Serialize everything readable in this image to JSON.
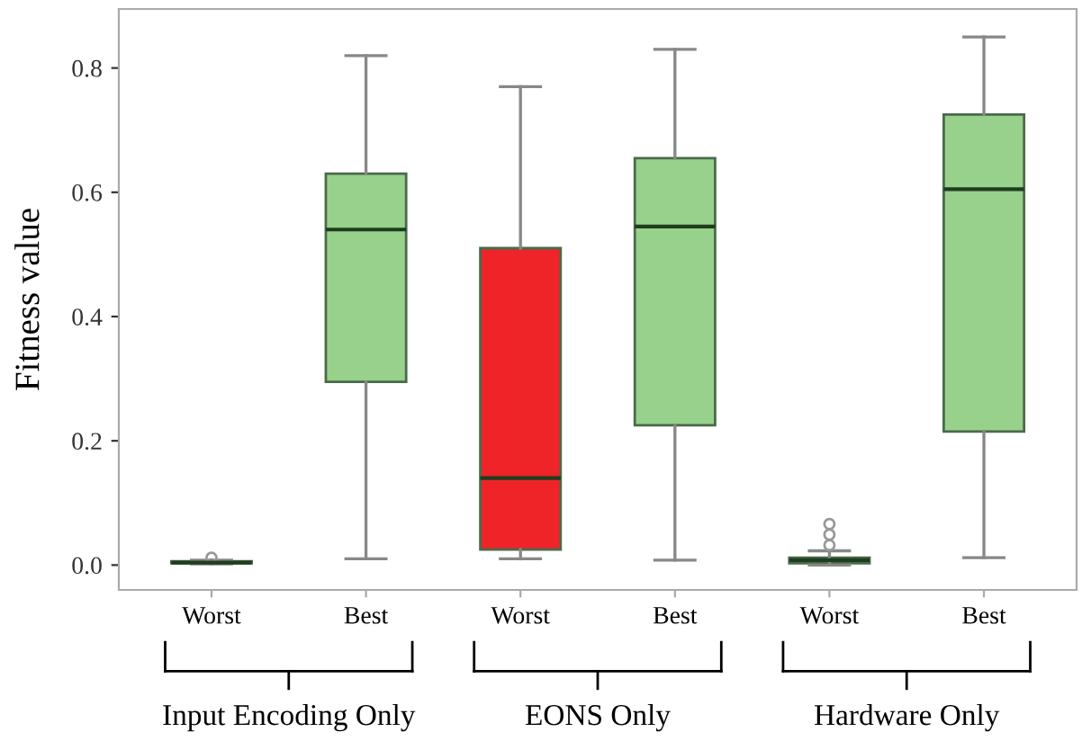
{
  "chart_data": {
    "type": "box",
    "ylabel": "Fitness value",
    "categories": [
      "Worst",
      "Best",
      "Worst",
      "Best",
      "Worst",
      "Best"
    ],
    "colors": [
      "#ee2428",
      "#98d18b",
      "#ee2428",
      "#98d18b",
      "#ee2428",
      "#98d18b"
    ],
    "boxes": [
      {
        "low": 0.002,
        "q1": 0.003,
        "median": 0.004,
        "q3": 0.006,
        "high": 0.008,
        "outliers": [
          0.012
        ]
      },
      {
        "low": 0.01,
        "q1": 0.295,
        "median": 0.54,
        "q3": 0.63,
        "high": 0.82
      },
      {
        "low": 0.01,
        "q1": 0.025,
        "median": 0.14,
        "q3": 0.51,
        "high": 0.77
      },
      {
        "low": 0.008,
        "q1": 0.225,
        "median": 0.545,
        "q3": 0.655,
        "high": 0.83
      },
      {
        "low": 0.0,
        "q1": 0.003,
        "median": 0.008,
        "q3": 0.012,
        "high": 0.023,
        "outliers": [
          0.032,
          0.049,
          0.066
        ]
      },
      {
        "low": 0.012,
        "q1": 0.215,
        "median": 0.605,
        "q3": 0.725,
        "high": 0.85
      }
    ],
    "ylim": [
      -0.04,
      0.895
    ],
    "yticks": [
      {
        "value": 0.0,
        "label": "0.0"
      },
      0.2,
      0.4,
      0.6,
      0.8
    ],
    "grid": false,
    "annotations": [
      "Input Encoding Only",
      "EONS Only",
      "Hardware Only"
    ]
  }
}
